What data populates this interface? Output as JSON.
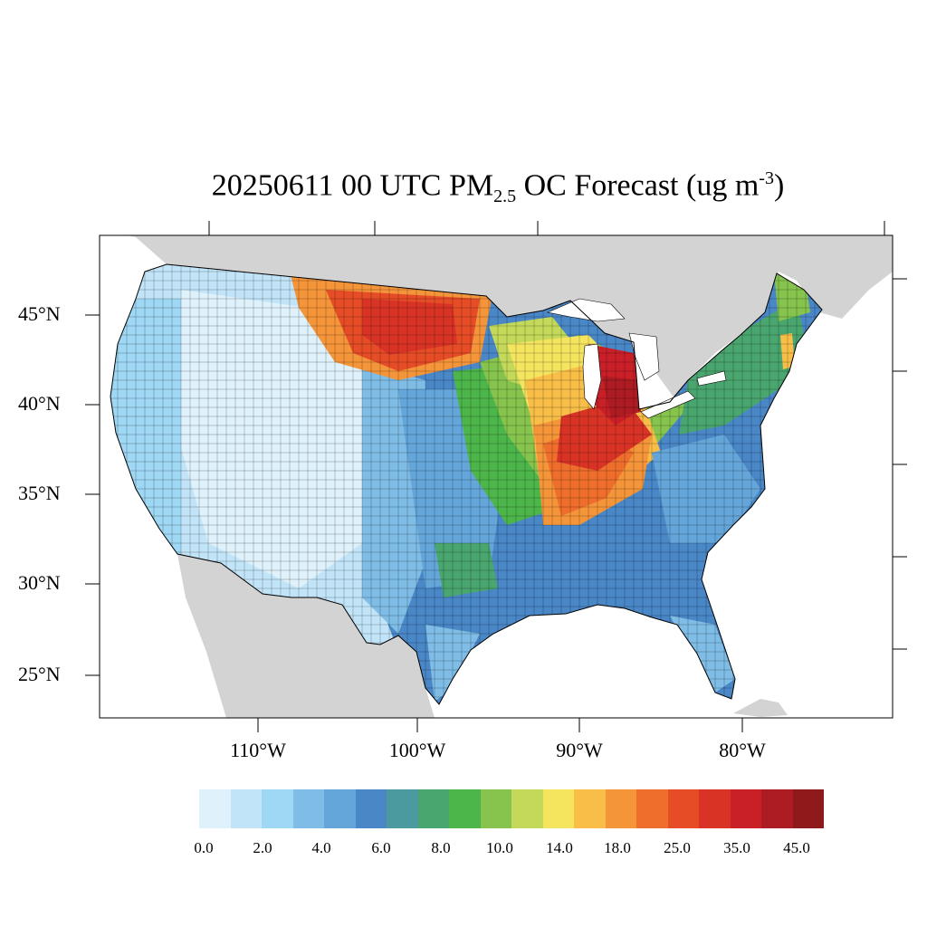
{
  "title": {
    "prefix": "20250611 00 UTC PM",
    "subscript": "2.5",
    "middle": " OC Forecast (ug m",
    "superscript": "-3",
    "suffix": ")"
  },
  "map": {
    "latitude_labels": [
      "45°N",
      "40°N",
      "35°N",
      "30°N",
      "25°N"
    ],
    "longitude_labels": [
      "110°W",
      "100°W",
      "90°W",
      "80°W"
    ],
    "land_outside_domain_color": "#d3d3d3",
    "water_color": "#ffffff",
    "county_border_color": "#000000"
  },
  "colorbar": {
    "colors": [
      "#dff2fb",
      "#c2e4f8",
      "#9fd8f5",
      "#7fbde6",
      "#64a6da",
      "#4a87c7",
      "#4b9a9f",
      "#49a66e",
      "#4db64a",
      "#86c44e",
      "#c4d95a",
      "#f5e45e",
      "#f8be48",
      "#f5953a",
      "#ef6e2b",
      "#e64d27",
      "#d93325",
      "#c92028",
      "#ad1c22",
      "#8e1a1b"
    ],
    "tick_labels": [
      "0.0",
      "2.0",
      "4.0",
      "6.0",
      "8.0",
      "10.0",
      "14.0",
      "18.0",
      "25.0",
      "35.0",
      "45.0"
    ]
  }
}
